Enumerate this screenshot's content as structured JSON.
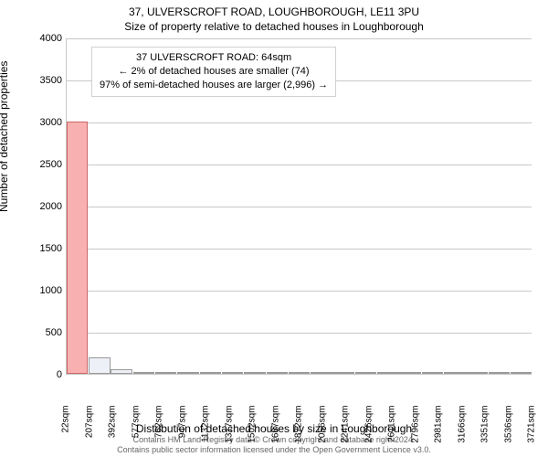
{
  "chart": {
    "type": "histogram",
    "title": "37, ULVERSCROFT ROAD, LOUGHBOROUGH, LE11 3PU",
    "subtitle": "Size of property relative to detached houses in Loughborough",
    "y_axis_title": "Number of detached properties",
    "x_axis_title": "Distribution of detached houses by size in Loughborough",
    "ylim": [
      0,
      4000
    ],
    "ytick_step": 500,
    "background_color": "#ffffff",
    "grid_color": "#c8c8c8",
    "bar_fill": "#eef0f8",
    "bar_border": "#999999",
    "highlight_fill": "#f9b0b0",
    "highlight_border": "#cc6666",
    "title_fontsize": 12,
    "label_fontsize": 11,
    "tick_fontsize": 10,
    "x_tick_labels": [
      "22sqm",
      "207sqm",
      "392sqm",
      "577sqm",
      "762sqm",
      "947sqm",
      "1132sqm",
      "1317sqm",
      "1502sqm",
      "1687sqm",
      "1872sqm",
      "2056sqm",
      "2241sqm",
      "2426sqm",
      "2611sqm",
      "2796sqm",
      "2981sqm",
      "3166sqm",
      "3351sqm",
      "3536sqm",
      "3721sqm"
    ],
    "bars": [
      {
        "x_frac": 0.0,
        "w_frac": 0.048,
        "value": 3000,
        "highlight": true
      },
      {
        "x_frac": 0.048,
        "w_frac": 0.048,
        "value": 200,
        "highlight": false
      },
      {
        "x_frac": 0.095,
        "w_frac": 0.048,
        "value": 50,
        "highlight": false
      },
      {
        "x_frac": 0.143,
        "w_frac": 0.048,
        "value": 20,
        "highlight": false
      },
      {
        "x_frac": 0.19,
        "w_frac": 0.048,
        "value": 15,
        "highlight": false
      },
      {
        "x_frac": 0.238,
        "w_frac": 0.048,
        "value": 10,
        "highlight": false
      },
      {
        "x_frac": 0.286,
        "w_frac": 0.048,
        "value": 8,
        "highlight": false
      },
      {
        "x_frac": 0.333,
        "w_frac": 0.048,
        "value": 6,
        "highlight": false
      },
      {
        "x_frac": 0.381,
        "w_frac": 0.048,
        "value": 5,
        "highlight": false
      },
      {
        "x_frac": 0.429,
        "w_frac": 0.048,
        "value": 4,
        "highlight": false
      },
      {
        "x_frac": 0.476,
        "w_frac": 0.048,
        "value": 4,
        "highlight": false
      },
      {
        "x_frac": 0.524,
        "w_frac": 0.048,
        "value": 3,
        "highlight": false
      },
      {
        "x_frac": 0.571,
        "w_frac": 0.048,
        "value": 3,
        "highlight": false
      },
      {
        "x_frac": 0.619,
        "w_frac": 0.048,
        "value": 2,
        "highlight": false
      },
      {
        "x_frac": 0.667,
        "w_frac": 0.048,
        "value": 2,
        "highlight": false
      },
      {
        "x_frac": 0.714,
        "w_frac": 0.048,
        "value": 2,
        "highlight": false
      },
      {
        "x_frac": 0.762,
        "w_frac": 0.048,
        "value": 2,
        "highlight": false
      },
      {
        "x_frac": 0.81,
        "w_frac": 0.048,
        "value": 1,
        "highlight": false
      },
      {
        "x_frac": 0.857,
        "w_frac": 0.048,
        "value": 1,
        "highlight": false
      },
      {
        "x_frac": 0.905,
        "w_frac": 0.048,
        "value": 1,
        "highlight": false
      },
      {
        "x_frac": 0.952,
        "w_frac": 0.048,
        "value": 1,
        "highlight": false
      }
    ],
    "annotation": {
      "line1": "37 ULVERSCROFT ROAD: 64sqm",
      "line2": "← 2% of detached houses are smaller (74)",
      "line3": "97% of semi-detached houses are larger (2,996) →"
    }
  },
  "footer": {
    "line1": "Contains HM Land Registry data © Crown copyright and database right 2024.",
    "line2": "Contains public sector information licensed under the Open Government Licence v3.0."
  }
}
